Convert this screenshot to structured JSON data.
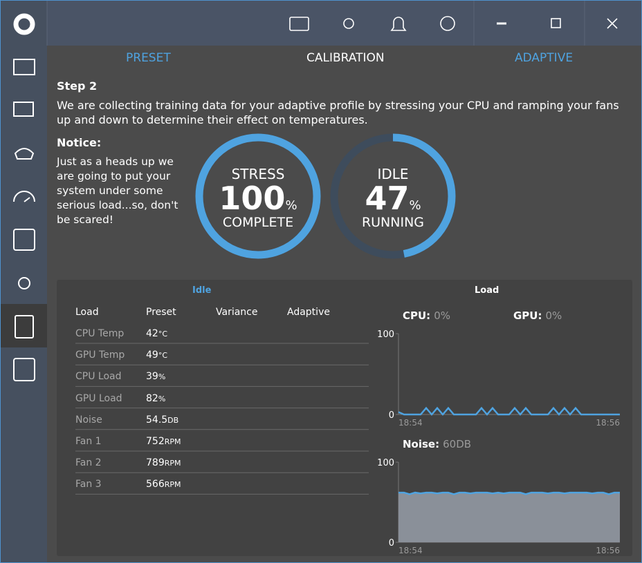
{
  "tabs": [
    "PRESET",
    "CALIBRATION",
    "ADAPTIVE"
  ],
  "step": {
    "title": "Step 2",
    "text": "We are collecting training data for your adaptive profile by stressing your CPU and ramping your fans up and down to determine their effect on temperatures."
  },
  "notice": {
    "title": "Notice:",
    "text": "Just as a heads up we are going to put your system under some serious load...so, don't be scared!"
  },
  "gauges": [
    {
      "top": "STRESS",
      "value": 100,
      "unit": "%",
      "bottom": "COMPLETE"
    },
    {
      "top": "IDLE",
      "value": 47,
      "unit": "%",
      "bottom": "RUNNING"
    }
  ],
  "panel": {
    "idle_title": "Idle",
    "load_title": "Load",
    "columns": [
      "Load",
      "Preset",
      "Variance",
      "Adaptive"
    ],
    "rows": [
      {
        "label": "CPU Temp",
        "value": 42,
        "unit": "°C"
      },
      {
        "label": "GPU Temp",
        "value": 49,
        "unit": "°C"
      },
      {
        "label": "CPU Load",
        "value": 39,
        "unit": "%"
      },
      {
        "label": "GPU Load",
        "value": 82,
        "unit": "%"
      },
      {
        "label": "Noise",
        "value": 54.5,
        "unit": "DB"
      },
      {
        "label": "Fan 1",
        "value": 752,
        "unit": "RPM"
      },
      {
        "label": "Fan 2",
        "value": 789,
        "unit": "RPM"
      },
      {
        "label": "Fan 3",
        "value": 566,
        "unit": "RPM"
      }
    ]
  },
  "charts": [
    {
      "labels": [
        {
          "name": "CPU:",
          "value": "0%"
        },
        {
          "name": "GPU:",
          "value": "0%"
        }
      ],
      "ylim": [
        0,
        100
      ],
      "yticks": [
        0,
        100
      ],
      "xticks": [
        "18:54",
        "18:56"
      ],
      "area": false,
      "values": [
        3,
        0,
        0,
        0,
        0,
        8,
        0,
        8,
        0,
        8,
        0,
        0,
        0,
        0,
        0,
        8,
        0,
        8,
        0,
        0,
        0,
        8,
        0,
        8,
        0,
        0,
        0,
        0,
        8,
        0,
        8,
        0,
        8,
        0,
        0,
        0,
        0,
        0,
        0,
        0,
        0
      ]
    },
    {
      "labels": [
        {
          "name": "Noise:",
          "value": "60DB"
        }
      ],
      "ylim": [
        0,
        100
      ],
      "yticks": [
        0,
        100
      ],
      "xticks": [
        "18:54",
        "18:56"
      ],
      "area": true,
      "values": [
        62,
        62,
        60,
        62,
        61,
        62,
        62,
        61,
        62,
        62,
        60,
        62,
        62,
        61,
        62,
        62,
        62,
        61,
        62,
        61,
        62,
        62,
        62,
        60,
        62,
        62,
        62,
        61,
        62,
        62,
        61,
        62,
        62,
        62,
        62,
        61,
        62,
        62,
        60,
        62,
        62
      ]
    }
  ]
}
